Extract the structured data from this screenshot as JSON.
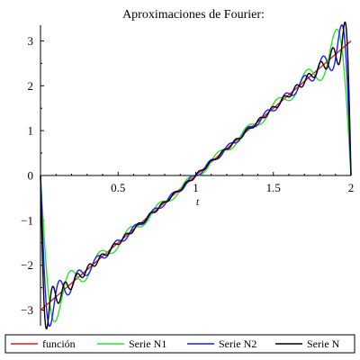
{
  "chart_data": {
    "type": "line",
    "title": "Aproximaciones de Fourier:",
    "xlabel": "t",
    "ylabel": "",
    "xlim": [
      0,
      2
    ],
    "ylim": [
      -3.35,
      3.35
    ],
    "x_ticks": [
      0.5,
      1,
      1.5,
      2
    ],
    "x_tick_labels": [
      "0.5",
      "1",
      "1.5",
      "2"
    ],
    "y_ticks": [
      -3,
      -2,
      -1,
      0,
      1,
      2,
      3
    ],
    "y_tick_labels": [
      "−3",
      "−2",
      "−1",
      "0",
      "1",
      "2",
      "3"
    ],
    "grid": false,
    "legend_position": "bottom",
    "series": [
      {
        "name": "función",
        "color": "#e41a1c",
        "n_terms": 0
      },
      {
        "name": "Serie N1",
        "color": "#2ee02e",
        "n_terms": 10
      },
      {
        "name": "Serie N2",
        "color": "#1c1cff",
        "n_terms": 16
      },
      {
        "name": "Serie N",
        "color": "#000000",
        "n_terms": 25
      }
    ]
  }
}
